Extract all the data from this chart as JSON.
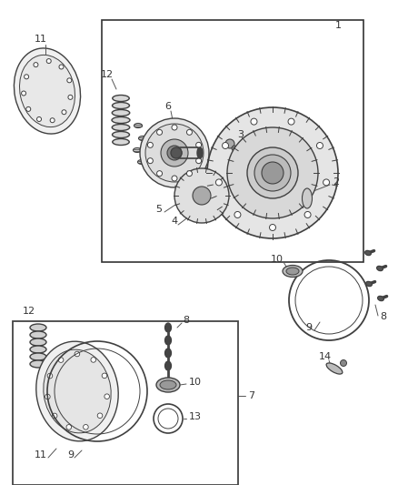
{
  "bg_color": "#ffffff",
  "line_color": "#404040",
  "fig_width": 4.38,
  "fig_height": 5.33,
  "dpi": 100,
  "label_color": "#333333",
  "leader_color": "#555555",
  "fill_light": "#e8e8e8",
  "fill_mid": "#cccccc",
  "fill_dark": "#888888",
  "fill_darkest": "#444444"
}
